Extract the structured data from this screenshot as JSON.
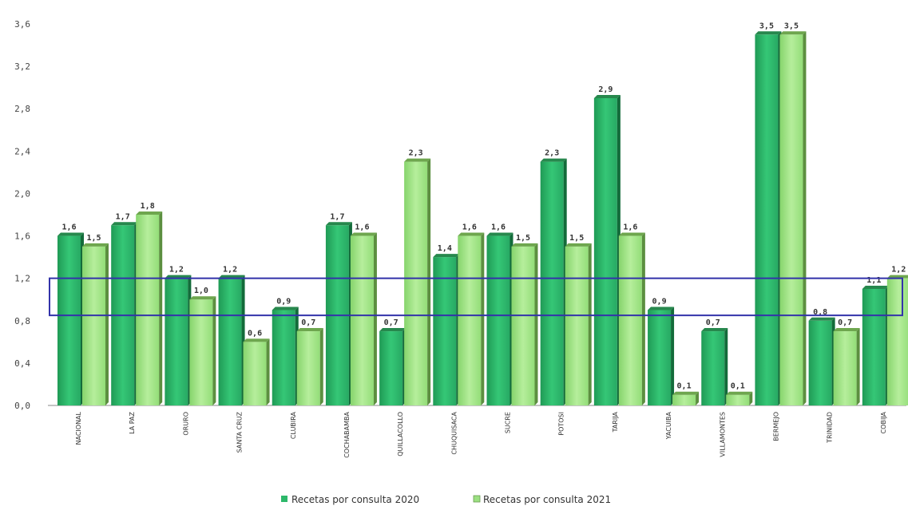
{
  "chart_data": {
    "type": "bar",
    "categories": [
      "NACIONAL",
      "LA PAZ",
      "ORURO",
      "SANTA CRUZ",
      "CLUBIRA",
      "COCHABAMBA",
      "QUILLACOLLO",
      "CHUQUISACA",
      "SUCRE",
      "POTOSI",
      "TARIJA",
      "YACUIBA",
      "VILLAMONTES",
      "BERMEJO",
      "TRINIDAD",
      "COBIJA"
    ],
    "series": [
      {
        "name": "Recetas por consulta 2020",
        "color": "#2db86a",
        "values": [
          1.6,
          1.7,
          1.2,
          1.2,
          0.9,
          1.7,
          0.7,
          1.4,
          1.6,
          2.3,
          2.9,
          0.9,
          0.7,
          3.5,
          0.8,
          1.1
        ],
        "labels": [
          "1,6",
          "1,7",
          "1,2",
          "1,2",
          "0,9",
          "1,7",
          "0,7",
          "1,4",
          "1,6",
          "2,3",
          "2,9",
          "0,9",
          "0,7",
          "3,5",
          "0,8",
          "1,1"
        ]
      },
      {
        "name": "Recetas por consulta 2021",
        "color": "#9be081",
        "values": [
          1.5,
          1.8,
          1.0,
          0.6,
          0.7,
          1.6,
          2.3,
          1.6,
          1.5,
          1.5,
          1.6,
          0.1,
          0.1,
          3.5,
          0.7,
          1.2
        ],
        "labels": [
          "1,5",
          "1,8",
          "1,0",
          "0,6",
          "0,7",
          "1,6",
          "2,3",
          "1,6",
          "1,5",
          "1,5",
          "1,6",
          "0,1",
          "0,1",
          "3,5",
          "0,7",
          "1,2"
        ]
      }
    ],
    "yticks": [
      "0,0",
      "0,4",
      "0,8",
      "1,2",
      "1,6",
      "2,0",
      "2,4",
      "2,8",
      "3,2",
      "3,6"
    ],
    "ylim": [
      0,
      3.6
    ],
    "highlight_band": [
      0.85,
      1.2
    ],
    "highlight_color": "#3333aa",
    "legend_position": "bottom"
  }
}
